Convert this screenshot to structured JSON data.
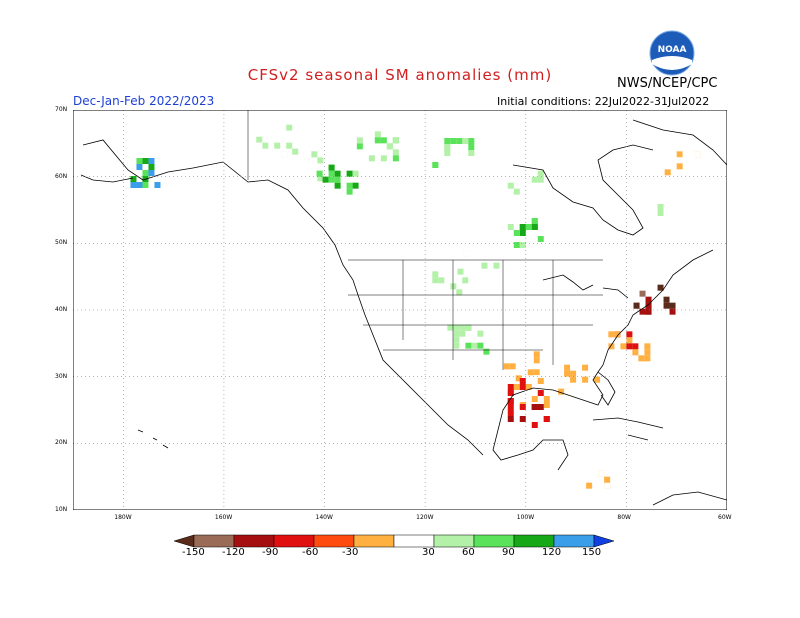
{
  "header": {
    "title": "CFSv2 seasonal SM anomalies (mm)",
    "org": "NWS/NCEP/CPC",
    "season": "Dec-Jan-Feb 2022/2023",
    "initial_conditions": "Initial conditions: 22Jul2022-31Jul2022",
    "logo_text": "NOAA"
  },
  "map": {
    "projection": "lat-lon",
    "lat_range": [
      10,
      70
    ],
    "lon_range": [
      -190,
      -60
    ],
    "lat_ticks": [
      "10N",
      "20N",
      "30N",
      "40N",
      "50N",
      "60N",
      "70N"
    ],
    "lon_ticks": [
      "180W",
      "160W",
      "140W",
      "120W",
      "100W",
      "80W",
      "60W"
    ],
    "grid": "dotted"
  },
  "legend": {
    "labels": [
      "-150",
      "-120",
      "-90",
      "-60",
      "-30",
      "30",
      "60",
      "90",
      "120",
      "150"
    ],
    "colors": [
      "#5a2a1a",
      "#9a6b57",
      "#a50f0f",
      "#e01010",
      "#ff4a10",
      "#ffb040",
      "#ffffff",
      "#b3f0a8",
      "#5ae35a",
      "#17a817",
      "#3a9ee8",
      "#1040e0"
    ]
  },
  "anomaly_regions": [
    {
      "lat": 66,
      "lon": -150,
      "value": 30
    },
    {
      "lat": 65,
      "lon": -130,
      "value": 60
    },
    {
      "lat": 64,
      "lon": -115,
      "value": 60
    },
    {
      "lat": 62,
      "lon": -145,
      "value": 30
    },
    {
      "lat": 61,
      "lon": -175,
      "value": 120
    },
    {
      "lat": 60,
      "lon": -138,
      "value": 90
    },
    {
      "lat": 52,
      "lon": -100,
      "value": 90
    },
    {
      "lat": 48,
      "lon": -110,
      "value": 30
    },
    {
      "lat": 44,
      "lon": -115,
      "value": 30
    },
    {
      "lat": 36,
      "lon": -112,
      "value": 60
    },
    {
      "lat": 32,
      "lon": -102,
      "value": -30
    },
    {
      "lat": 28,
      "lon": -100,
      "value": -60
    },
    {
      "lat": 25,
      "lon": -100,
      "value": -90
    },
    {
      "lat": 35,
      "lon": -80,
      "value": -60
    },
    {
      "lat": 42,
      "lon": -75,
      "value": -150
    },
    {
      "lat": 30,
      "lon": -90,
      "value": -30
    },
    {
      "lat": 62,
      "lon": -70,
      "value": -30
    },
    {
      "lat": 60,
      "lon": -100,
      "value": 30
    },
    {
      "lat": 55,
      "lon": -75,
      "value": 30
    },
    {
      "lat": 15,
      "lon": -88,
      "value": -30
    }
  ]
}
